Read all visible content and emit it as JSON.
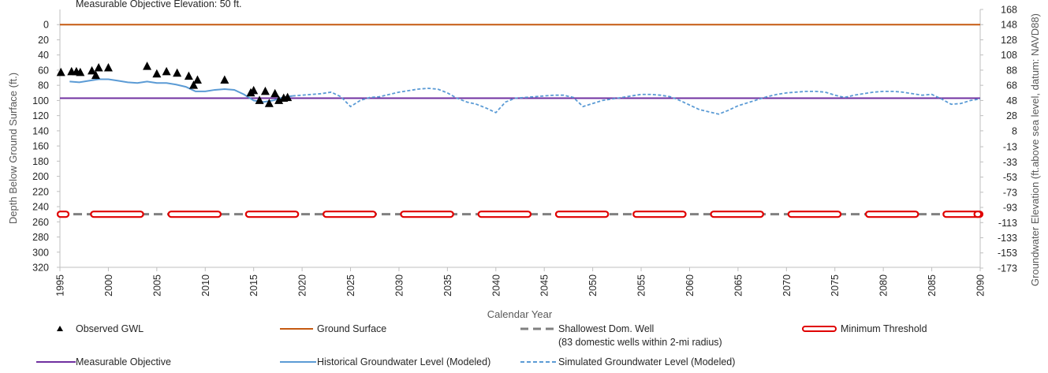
{
  "chart_data": {
    "type": "line",
    "title_fragment": "Measurable Objective Elevation: 50 ft.",
    "xlabel": "Calendar Year",
    "ylabel_left": "Depth Below Ground Surface  (ft.)",
    "ylabel_right": "Groundwater Elevation (ft.above sea level, datum: NAVD88)",
    "xlim": [
      1995,
      2090
    ],
    "ylim_left": [
      320,
      -20
    ],
    "y_inverted": true,
    "x_ticks": [
      1995,
      2000,
      2005,
      2010,
      2015,
      2020,
      2025,
      2030,
      2035,
      2040,
      2045,
      2050,
      2055,
      2060,
      2065,
      2070,
      2075,
      2080,
      2085,
      2090
    ],
    "left_ticks": [
      0,
      20,
      40,
      60,
      80,
      100,
      120,
      140,
      160,
      180,
      200,
      220,
      240,
      260,
      280,
      300,
      320
    ],
    "right_ticks": [
      "168",
      "148",
      "128",
      "108",
      "88",
      "68",
      "48",
      "28",
      "8",
      "-13",
      "-33",
      "-53",
      "-73",
      "-93",
      "-113",
      "-133",
      "-153",
      "-173"
    ],
    "right_tick_depths": [
      -20,
      0,
      20,
      40,
      60,
      80,
      100,
      120,
      140,
      161,
      181,
      201,
      221,
      241,
      261,
      281,
      301,
      321
    ],
    "colors": {
      "observed": "#000000",
      "ground_surface": "#C55A11",
      "shallowest_well": "#808080",
      "minimum_threshold": "#E00000",
      "measurable_objective": "#7030A0",
      "historical": "#5B9BD5",
      "simulated": "#5B9BD5"
    },
    "series": [
      {
        "name": "Observed GWL",
        "kind": "markers",
        "x": [
          1995.1,
          1996.2,
          1996.7,
          1997.1,
          1998.3,
          1998.7,
          1999.0,
          2000.0,
          2004.0,
          2005.0,
          2006.0,
          2007.1,
          2008.3,
          2008.8,
          2009.2,
          2012.0,
          2014.7,
          2015.0,
          2015.6,
          2016.2,
          2016.6,
          2017.2,
          2017.6,
          2018.1,
          2018.5
        ],
        "y": [
          63,
          62,
          62,
          63,
          61,
          67,
          57,
          57,
          55,
          65,
          62,
          64,
          68,
          80,
          73,
          73,
          90,
          87,
          100,
          88,
          104,
          91,
          100,
          97,
          96
        ]
      },
      {
        "name": "Ground Surface",
        "kind": "hline",
        "y": 0
      },
      {
        "name": "Shallowest Dom. Well",
        "kind": "hline",
        "y": 250
      },
      {
        "name": "Minimum Threshold",
        "kind": "hline",
        "y": 250
      },
      {
        "name": "Measurable Objective",
        "kind": "hline",
        "y": 97
      },
      {
        "name": "Historical Groundwater Level (Modeled)",
        "kind": "line",
        "x": [
          1996,
          1997,
          1998,
          1999,
          2000,
          2001,
          2002,
          2003,
          2004,
          2005,
          2006,
          2007,
          2008,
          2009,
          2010,
          2011,
          2012,
          2013,
          2014,
          2015,
          2016,
          2017,
          2018,
          2019
        ],
        "y": [
          75,
          76,
          74,
          72,
          72,
          74,
          76,
          77,
          75,
          77,
          77,
          79,
          82,
          88,
          88,
          86,
          85,
          86,
          92,
          100,
          102,
          100,
          96,
          94
        ]
      },
      {
        "name": "Simulated Groundwater Level (Modeled)",
        "kind": "line",
        "x": [
          2019,
          2020,
          2021,
          2022,
          2023,
          2024,
          2025,
          2026,
          2027,
          2028,
          2029,
          2030,
          2031,
          2032,
          2033,
          2034,
          2035,
          2036,
          2037,
          2038,
          2039,
          2040,
          2041,
          2042,
          2043,
          2044,
          2045,
          2046,
          2047,
          2048,
          2049,
          2050,
          2051,
          2052,
          2053,
          2054,
          2055,
          2056,
          2057,
          2058,
          2059,
          2060,
          2061,
          2062,
          2063,
          2064,
          2065,
          2066,
          2067,
          2068,
          2069,
          2070,
          2071,
          2072,
          2073,
          2074,
          2075,
          2076,
          2077,
          2078,
          2079,
          2080,
          2081,
          2082,
          2083,
          2084,
          2085,
          2086,
          2087,
          2088,
          2089,
          2090
        ],
        "y": [
          94,
          93,
          92,
          91,
          89,
          95,
          108,
          100,
          96,
          95,
          92,
          89,
          87,
          85,
          84,
          85,
          90,
          97,
          102,
          105,
          110,
          116,
          102,
          97,
          96,
          95,
          94,
          93,
          93,
          96,
          108,
          104,
          100,
          98,
          96,
          94,
          92,
          92,
          93,
          95,
          100,
          106,
          112,
          115,
          118,
          113,
          107,
          103,
          99,
          95,
          92,
          90,
          89,
          88,
          88,
          89,
          93,
          96,
          93,
          91,
          89,
          88,
          88,
          89,
          91,
          93,
          92,
          98,
          105,
          104,
          100,
          98
        ]
      }
    ]
  },
  "legend": {
    "observed": "Observed GWL",
    "ground_surface": "Ground Surface",
    "shallowest_well": "Shallowest Dom. Well",
    "shallowest_well_sub": "(83 domestic wells within 2-mi radius)",
    "minimum_threshold": "Minimum Threshold",
    "measurable_objective": "Measurable Objective",
    "historical": "Historical Groundwater Level (Modeled)",
    "simulated": "Simulated Groundwater Level (Modeled)"
  }
}
